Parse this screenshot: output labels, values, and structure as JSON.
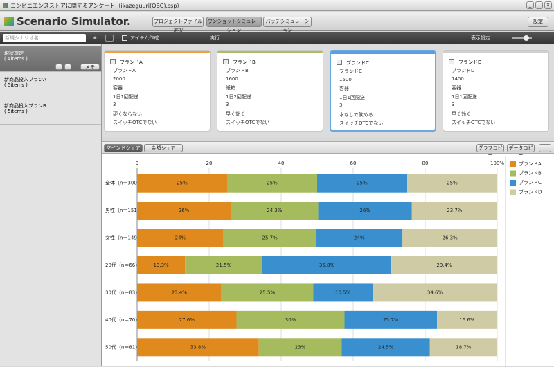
{
  "window": {
    "title": "コンビニエンスストアに関するアンケート（ikazeguuri(OBC).ssp）"
  },
  "header": {
    "app_name": "Scenario Simulator.",
    "buttons": [
      "プロジェクトファイル選択",
      "ワンショットシミュレーション",
      "バッチシミュレーション"
    ],
    "settings": "設定"
  },
  "sidebar": {
    "search_placeholder": "新規シナリオ名",
    "add": "+",
    "memo": "メモ",
    "scenarios": [
      {
        "name": "現状想定",
        "count": "( 4items )"
      },
      {
        "name": "新商品投入プランA",
        "count": "( 5items )"
      },
      {
        "name": "新商品投入プランB",
        "count": "( 5items )"
      }
    ]
  },
  "toolbar": {
    "create": "アイテム作成",
    "run": "実行",
    "display": "表示設定"
  },
  "cards": [
    {
      "title": "ブランドA",
      "rows": [
        "ブランドA",
        "2000",
        "容器",
        "1日1回配送",
        "3",
        "硬くならない",
        "スイッチOTCでない"
      ]
    },
    {
      "title": "ブランドB",
      "rows": [
        "ブランドB",
        "1600",
        "紙箱",
        "1日2回配送",
        "3",
        "早く効く",
        "スイッチOTCでない"
      ]
    },
    {
      "title": "ブランドC",
      "rows": [
        "ブランドC",
        "1500",
        "容器",
        "1日1回配送",
        "3",
        "水なしで飲める",
        "スイッチOTCでない"
      ]
    },
    {
      "title": "ブランドD",
      "rows": [
        "ブランドD",
        "1400",
        "容器",
        "1日1回配送",
        "3",
        "早く効く",
        "スイッチOTCでない"
      ]
    }
  ],
  "tabs": [
    "マインドシェア",
    "金額シェア"
  ],
  "actions": [
    "グラフコピー",
    "データコピー"
  ],
  "chart_data": {
    "type": "stacked_bar",
    "orientation": "horizontal",
    "categories": [
      "全体（n＝300）",
      "男性（n＝151）",
      "女性（n＝149）",
      "20代（n＝66）",
      "30代（n＝83）",
      "40代（n＝70）",
      "50代（n＝81）"
    ],
    "series": [
      {
        "name": "ブランドA",
        "color": "#e08a1e",
        "values": [
          25,
          26,
          24,
          13.3,
          23.4,
          27.6,
          33.8
        ],
        "value_labels": [
          "25%",
          "26%",
          "24%",
          "13.3%",
          "23.4%",
          "27.6%",
          "33.8%"
        ]
      },
      {
        "name": "ブランドB",
        "color": "#a6bb5e",
        "values": [
          25,
          24.3,
          25.7,
          21.5,
          25.5,
          30,
          23
        ],
        "value_labels": [
          "25%",
          "24.3%",
          "25.7%",
          "21.5%",
          "25.5%",
          "30%",
          "23%"
        ]
      },
      {
        "name": "ブランドC",
        "color": "#3a90cf",
        "values": [
          25,
          26,
          24,
          35.8,
          16.5,
          25.7,
          24.5
        ],
        "value_labels": [
          "25%",
          "26%",
          "24%",
          "35.8%",
          "16.5%",
          "25.7%",
          "24.5%"
        ]
      },
      {
        "name": "ブランドD",
        "color": "#cfcba4",
        "values": [
          25,
          23.7,
          26.3,
          29.4,
          34.6,
          16.6,
          18.7
        ],
        "value_labels": [
          "25%",
          "23.7%",
          "26.3%",
          "29.4%",
          "34.6%",
          "16.6%",
          "18.7%"
        ]
      }
    ],
    "xlim": [
      0,
      100
    ],
    "xticks": [
      0,
      20,
      40,
      60,
      80,
      {
        "value": 100,
        "label": "100%"
      }
    ],
    "grid": true,
    "legend": "right"
  }
}
